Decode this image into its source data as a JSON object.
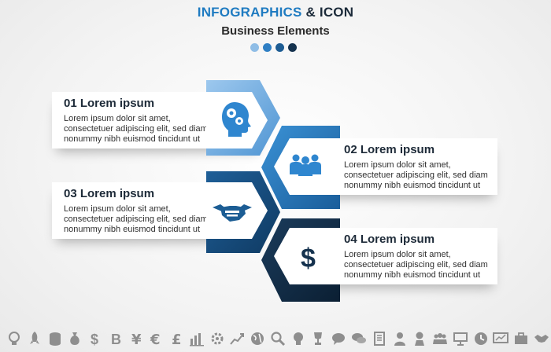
{
  "header": {
    "title_part1": "INFOGRAPHICS",
    "title_amp": "&",
    "title_part2": "ICON",
    "subtitle": "Business Elements"
  },
  "dots": [
    "#8fbde6",
    "#2f7fc4",
    "#1d5c93",
    "#15324e"
  ],
  "steps": [
    {
      "heading": "01  Lorem ipsum",
      "lines": [
        "Lorem ipsum dolor sit amet,",
        "consectetuer adipiscing elit, sed diam",
        "nonummy nibh euismod tincidunt ut"
      ],
      "icon": "head-gears-icon",
      "color": "#7db3e3"
    },
    {
      "heading": "02 Lorem ipsum",
      "lines": [
        "Lorem ipsum dolor sit amet,",
        "consectetuer adipiscing elit, sed diam",
        "nonummy nibh euismod tincidunt ut"
      ],
      "icon": "team-icon",
      "color": "#2e82c8"
    },
    {
      "heading": "03 Lorem ipsum",
      "lines": [
        "Lorem ipsum dolor sit amet,",
        "consectetuer adipiscing elit, sed diam",
        "nonummy nibh euismod tincidunt ut"
      ],
      "icon": "handshake-icon",
      "color": "#1c5d94"
    },
    {
      "heading": "04 Lorem ipsum",
      "lines": [
        "Lorem ipsum dolor sit amet,",
        "consectetuer adipiscing elit, sed diam",
        "nonummy nibh euismod tincidunt ut"
      ],
      "icon": "dollar-icon",
      "color": "#15324e"
    }
  ],
  "bottom_icons": [
    "lightbulb-icon",
    "rocket-icon",
    "coins-icon",
    "money-bag-icon",
    "dollar-sign-icon",
    "bitcoin-icon",
    "yen-icon",
    "euro-icon",
    "pound-icon",
    "bar-chart-icon",
    "gear-icon",
    "growth-chart-icon",
    "globe-icon",
    "magnifier-icon",
    "head-icon",
    "trophy-icon",
    "speech-bubble-icon",
    "chat-icon",
    "document-icon",
    "businessman-icon",
    "woman-icon",
    "team-icon",
    "presentation-icon",
    "clock-icon",
    "monitor-chart-icon",
    "briefcase-icon",
    "handshake-icon"
  ]
}
